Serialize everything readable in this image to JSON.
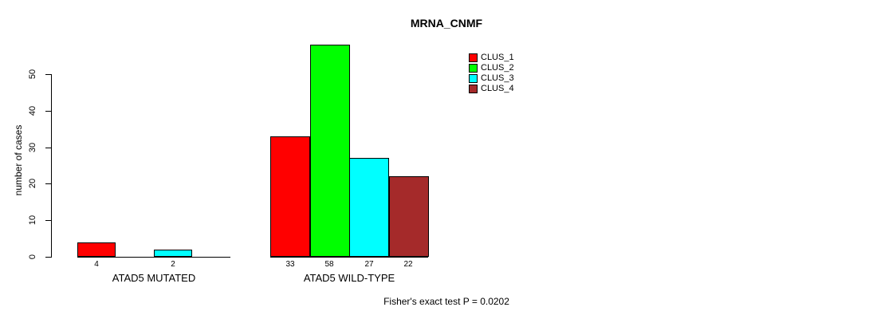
{
  "chart_data": {
    "type": "bar",
    "title": "MRNA_CNMF",
    "ylabel": "number of cases",
    "annotation": "Fisher's exact test P = 0.0202",
    "ylim": [
      0,
      58
    ],
    "y_ticks": [
      0,
      10,
      20,
      30,
      40,
      50
    ],
    "grid": false,
    "legend_position": "top-right",
    "categories": [
      "ATAD5 MUTATED",
      "ATAD5 WILD-TYPE"
    ],
    "series": [
      {
        "name": "CLUS_1",
        "color": "#FF0000",
        "values": [
          4,
          33
        ]
      },
      {
        "name": "CLUS_2",
        "color": "#00FF00",
        "values": [
          0,
          58
        ]
      },
      {
        "name": "CLUS_3",
        "color": "#00FFFF",
        "values": [
          2,
          27
        ]
      },
      {
        "name": "CLUS_4",
        "color": "#A52A2A",
        "values": [
          0,
          22
        ]
      }
    ],
    "bar_value_labels": [
      [
        "4",
        "2"
      ],
      [
        "33",
        "58",
        "27",
        "22"
      ]
    ]
  }
}
